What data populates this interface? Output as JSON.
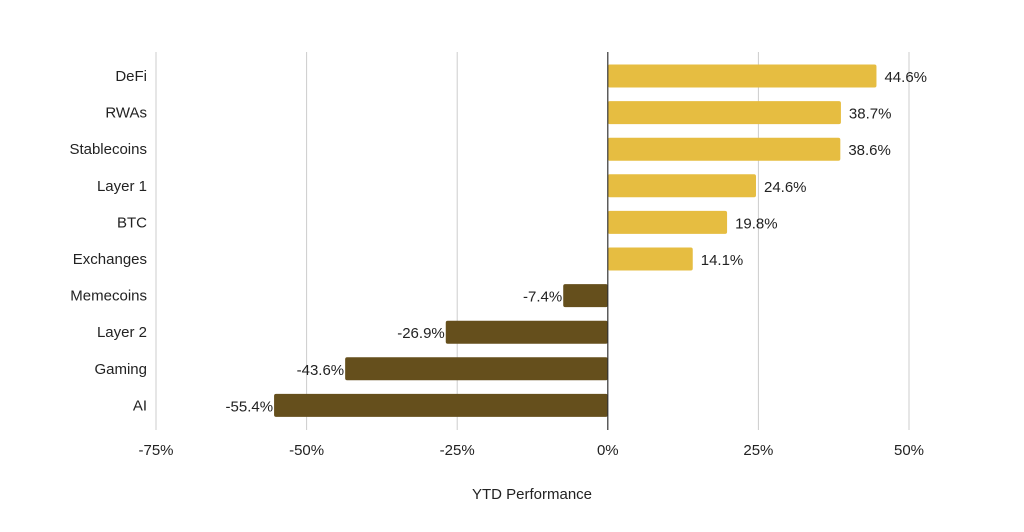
{
  "chart_data": {
    "type": "bar",
    "orientation": "horizontal",
    "title": "",
    "xlabel": "YTD Performance",
    "ylabel": "",
    "xlim": [
      -75,
      50
    ],
    "xticks": [
      -75,
      -50,
      -25,
      0,
      25,
      50
    ],
    "xtick_labels": [
      "-75%",
      "-50%",
      "-25%",
      "0%",
      "25%",
      "50%"
    ],
    "grid": "vertical",
    "legend": "none",
    "categories": [
      "DeFi",
      "RWAs",
      "Stablecoins",
      "Layer 1",
      "BTC",
      "Exchanges",
      "Memecoins",
      "Layer 2",
      "Gaming",
      "AI"
    ],
    "values": [
      44.6,
      38.7,
      38.6,
      24.6,
      19.8,
      14.1,
      -7.4,
      -26.9,
      -43.6,
      -55.4
    ],
    "value_labels": [
      "44.6%",
      "38.7%",
      "38.6%",
      "24.6%",
      "19.8%",
      "14.1%",
      "-7.4%",
      "-26.9%",
      "-43.6%",
      "-55.4%"
    ],
    "colors": {
      "positive": "#E6BD41",
      "negative": "#654F1C",
      "grid": "#cccccc",
      "zero_line": "#333333",
      "text": "#222222"
    }
  }
}
